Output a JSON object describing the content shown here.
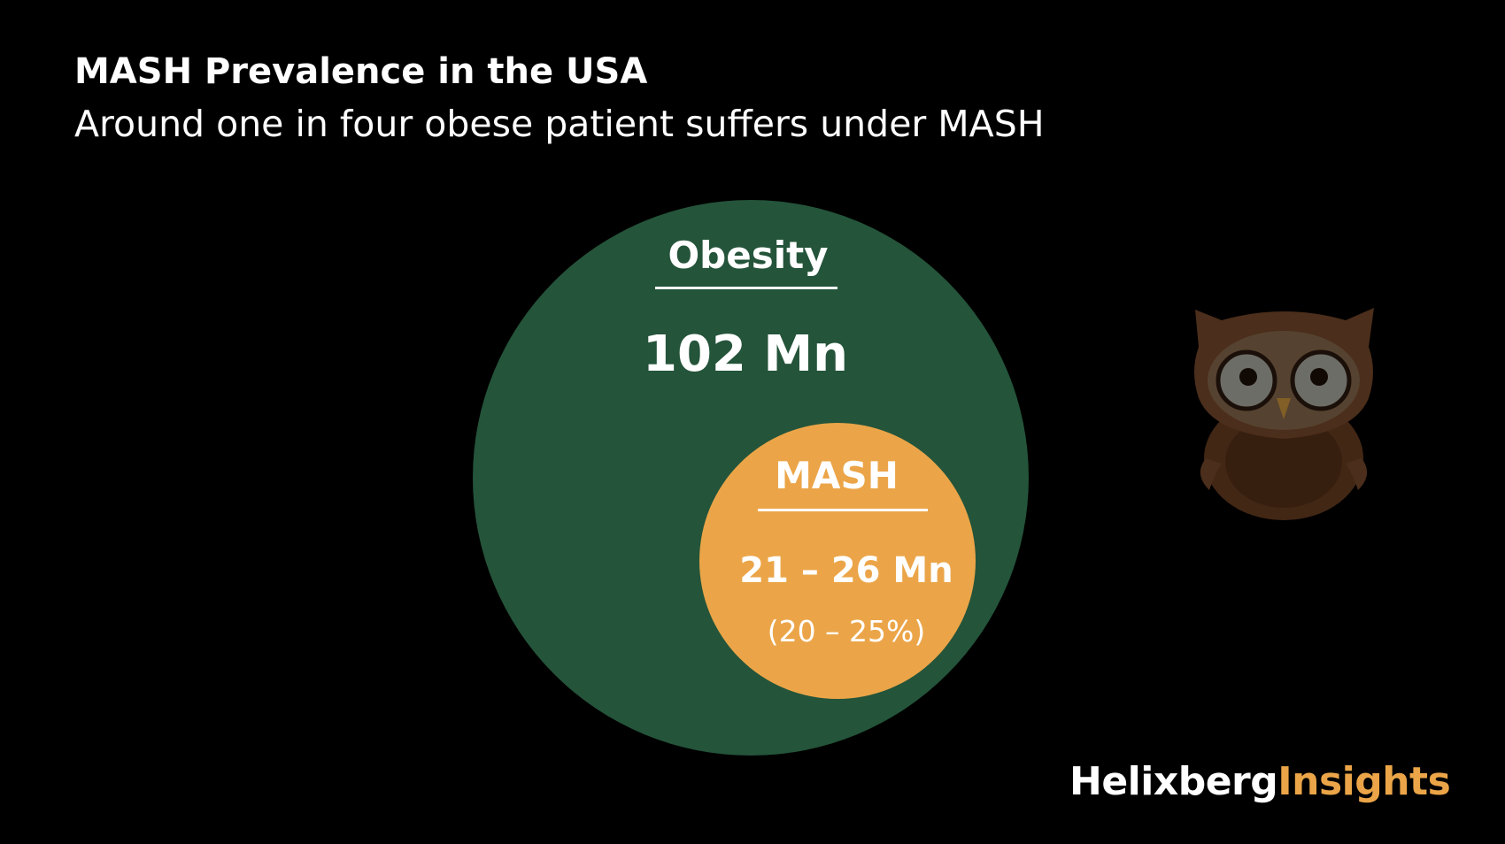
{
  "header": {
    "title": "MASH Prevalence in the USA",
    "subtitle": "Around one in four obese patient suffers under MASH"
  },
  "diagram": {
    "outer": {
      "label": "Obesity",
      "value": "102 Mn",
      "color": "#24543A"
    },
    "inner": {
      "label": "MASH",
      "value": "21 – 26 Mn",
      "share": "(20 – 25%)",
      "color": "#EBA548"
    }
  },
  "mascot": {
    "icon": "owl-icon",
    "color": "#7A4B2C"
  },
  "brand": {
    "name_part1": "Helixberg",
    "name_part2": "Insights",
    "accent_color": "#EBA548"
  }
}
